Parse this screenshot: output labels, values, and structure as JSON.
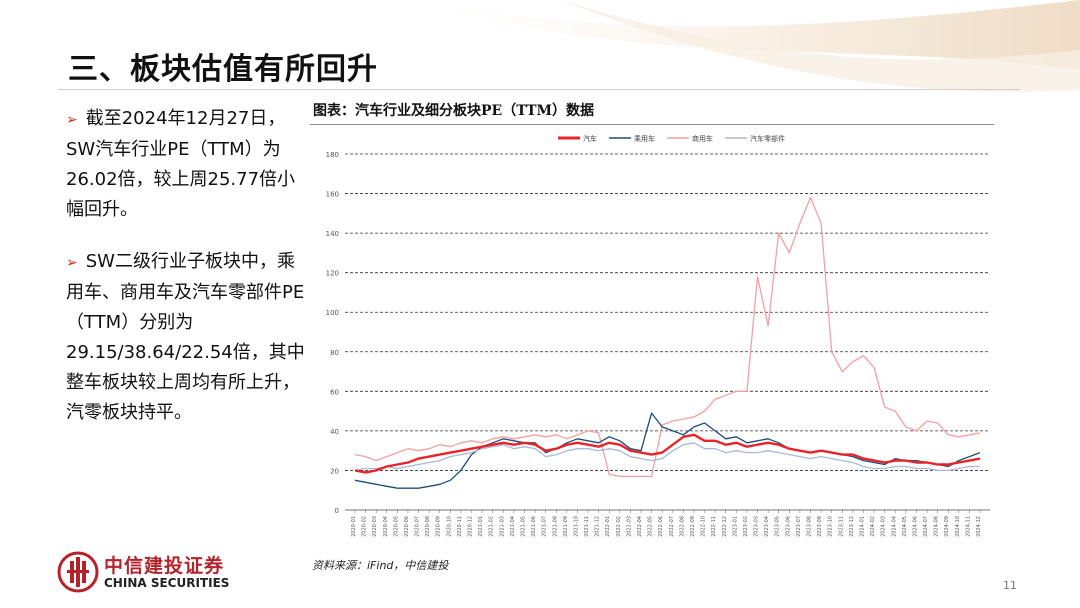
{
  "slide": {
    "title": "三、板块估值有所回升",
    "bullets": [
      "截至2024年12月27日，SW汽车行业PE（TTM）为26.02倍，较上周25.77倍小幅回升。",
      "SW二级行业子板块中，乘用车、商用车及汽车零部件PE（TTM）分别为29.15/38.64/22.54倍，其中整车板块较上周均有所上升，汽零板块持平。"
    ],
    "bullet_marker": "➢",
    "chart_caption": "图表：汽车行业及细分板块PE（TTM）数据",
    "source_note": "资料来源：iFind，中信建投",
    "page_number": "11"
  },
  "logo": {
    "cn": "中信建投证券",
    "en": "CHINA SECURITIES"
  },
  "colors": {
    "brand_red": "#b4232b",
    "accent_red": "#d52b1e"
  },
  "chart_data": {
    "type": "line",
    "title": "",
    "xlabel": "",
    "ylabel": "",
    "ylim": [
      0,
      180
    ],
    "yticks": [
      0,
      20,
      40,
      60,
      80,
      100,
      120,
      140,
      160,
      180
    ],
    "grid": "horizontal dashed",
    "legend_position": "top-center",
    "x": [
      "2020-01",
      "2020-02",
      "2020-03",
      "2020-04",
      "2020-05",
      "2020-06",
      "2020-07",
      "2020-08",
      "2020-09",
      "2020-10",
      "2020-11",
      "2020-12",
      "2021-01",
      "2021-02",
      "2021-03",
      "2021-04",
      "2021-05",
      "2021-06",
      "2021-07",
      "2021-08",
      "2021-09",
      "2021-10",
      "2021-11",
      "2021-12",
      "2022-01",
      "2022-02",
      "2022-03",
      "2022-04",
      "2022-05",
      "2022-06",
      "2022-07",
      "2022-08",
      "2022-09",
      "2022-10",
      "2022-11",
      "2022-12",
      "2023-01",
      "2023-02",
      "2023-03",
      "2023-04",
      "2023-05",
      "2023-06",
      "2023-07",
      "2023-08",
      "2023-09",
      "2023-10",
      "2023-11",
      "2023-12",
      "2024-01",
      "2024-02",
      "2024-03",
      "2024-04",
      "2024-05",
      "2024-06",
      "2024-07",
      "2024-08",
      "2024-09",
      "2024-10",
      "2024-11",
      "2024-12"
    ],
    "series": [
      {
        "name": "汽车",
        "color": "#e8242a",
        "width": 2.4,
        "values": [
          20,
          19,
          20,
          22,
          23,
          24,
          26,
          27,
          28,
          29,
          30,
          31,
          32,
          33,
          34,
          33,
          34,
          33,
          30,
          31,
          33,
          34,
          33,
          32,
          34,
          33,
          30,
          29,
          28,
          29,
          33,
          37,
          38,
          35,
          35,
          33,
          34,
          32,
          33,
          34,
          33,
          31,
          30,
          29,
          30,
          29,
          28,
          28,
          26,
          25,
          24,
          25,
          25,
          24,
          24,
          23,
          23,
          24,
          25,
          26
        ]
      },
      {
        "name": "乘用车",
        "color": "#1c4d7a",
        "width": 1.3,
        "values": [
          15,
          14,
          13,
          12,
          11,
          11,
          11,
          12,
          13,
          15,
          20,
          28,
          32,
          34,
          36,
          35,
          34,
          34,
          29,
          31,
          34,
          36,
          35,
          34,
          37,
          35,
          31,
          30,
          49,
          42,
          40,
          38,
          42,
          44,
          40,
          36,
          37,
          34,
          35,
          36,
          34,
          31,
          30,
          29,
          30,
          29,
          28,
          27,
          25,
          24,
          23,
          26,
          25,
          25,
          24,
          23,
          22,
          25,
          27,
          29
        ]
      },
      {
        "name": "商用车",
        "color": "#f2a0a0",
        "width": 1.3,
        "values": [
          28,
          27,
          25,
          27,
          29,
          31,
          30,
          31,
          33,
          32,
          34,
          35,
          34,
          36,
          37,
          36,
          37,
          38,
          37,
          38,
          36,
          38,
          40,
          39,
          18,
          17,
          17,
          17,
          17,
          43,
          45,
          46,
          47,
          50,
          56,
          58,
          60,
          60,
          118,
          93,
          140,
          130,
          145,
          158,
          145,
          80,
          70,
          75,
          78,
          72,
          52,
          50,
          42,
          40,
          45,
          44,
          38,
          37,
          38,
          39
        ]
      },
      {
        "name": "汽车零部件",
        "color": "#a8b8d8",
        "width": 1.3,
        "values": [
          20,
          21,
          21,
          22,
          21,
          22,
          23,
          24,
          25,
          27,
          28,
          29,
          31,
          32,
          33,
          31,
          32,
          31,
          27,
          28,
          30,
          31,
          31,
          30,
          31,
          30,
          27,
          26,
          25,
          26,
          30,
          33,
          34,
          31,
          31,
          29,
          30,
          29,
          29,
          30,
          29,
          28,
          27,
          26,
          27,
          26,
          25,
          24,
          22,
          21,
          21,
          22,
          22,
          21,
          21,
          20,
          20,
          21,
          22,
          22
        ]
      }
    ]
  }
}
